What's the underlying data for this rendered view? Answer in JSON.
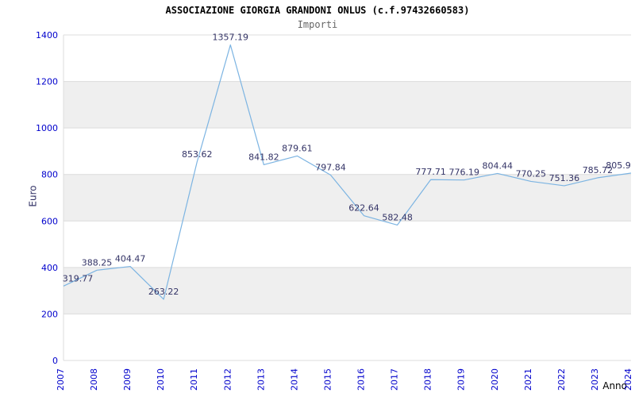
{
  "header": {
    "title": "ASSOCIAZIONE GIORGIA GRANDONI ONLUS (c.f.97432660583)",
    "subtitle": "Importi"
  },
  "chart_data": {
    "type": "line",
    "title": "ASSOCIAZIONE GIORGIA GRANDONI ONLUS (c.f.97432660583)",
    "subtitle": "Importi",
    "xlabel": "Anno",
    "ylabel": "Euro",
    "categories": [
      "2007",
      "2008",
      "2009",
      "2010",
      "2011",
      "2012",
      "2013",
      "2014",
      "2015",
      "2016",
      "2017",
      "2018",
      "2019",
      "2020",
      "2021",
      "2022",
      "2023",
      "2024"
    ],
    "values": [
      319.77,
      388.25,
      404.47,
      263.22,
      853.62,
      1357.19,
      841.82,
      879.61,
      797.84,
      622.64,
      582.48,
      777.71,
      776.19,
      804.44,
      770.25,
      751.36,
      785.72,
      805.9
    ],
    "value_labels": [
      "319.77",
      "388.25",
      "404.47",
      "263.22",
      "853.62",
      "1357.19",
      "841.82",
      "879.61",
      "797.84",
      "622.64",
      "582.48",
      "777.71",
      "776.19",
      "804.44",
      "770.25",
      "751.36",
      "785.72",
      "805.9"
    ],
    "ylim": [
      0,
      1400
    ],
    "ytick_step": 200,
    "grid": true,
    "legend": "none",
    "band_colors": [
      "#ffffff",
      "#efefef"
    ],
    "line_color": "#7cb4e2",
    "grid_color": "#dcdcdc",
    "tick_color": "#0000cc",
    "label_color": "#333366"
  }
}
